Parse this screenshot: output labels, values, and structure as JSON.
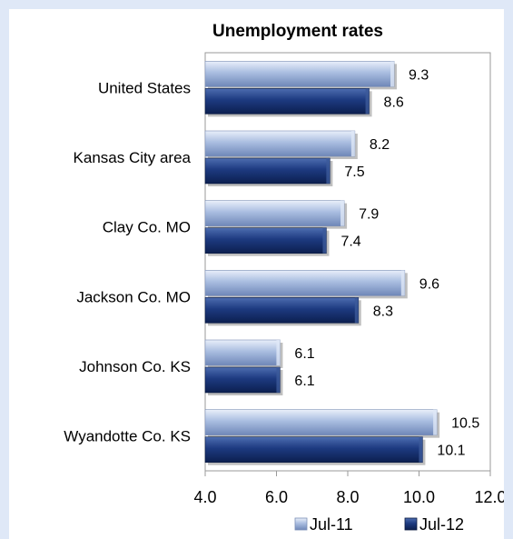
{
  "chart_data": {
    "type": "bar",
    "orientation": "horizontal",
    "title": "Unemployment rates",
    "categories": [
      "United States",
      "Kansas City area",
      "Clay Co. MO",
      "Jackson Co. MO",
      "Johnson Co. KS",
      "Wyandotte Co. KS"
    ],
    "series": [
      {
        "name": "Jul-11",
        "values": [
          9.3,
          8.2,
          7.9,
          9.6,
          6.1,
          10.5
        ],
        "color": "#9fb4d9"
      },
      {
        "name": "Jul-12",
        "values": [
          8.6,
          7.5,
          7.4,
          8.3,
          6.1,
          10.1
        ],
        "color": "#1f3a7a"
      }
    ],
    "xlim": [
      4.0,
      12.0
    ],
    "x_ticks": [
      "4.0",
      "6.0",
      "8.0",
      "10.0",
      "12.0"
    ],
    "grid": false,
    "legend_position": "bottom"
  }
}
